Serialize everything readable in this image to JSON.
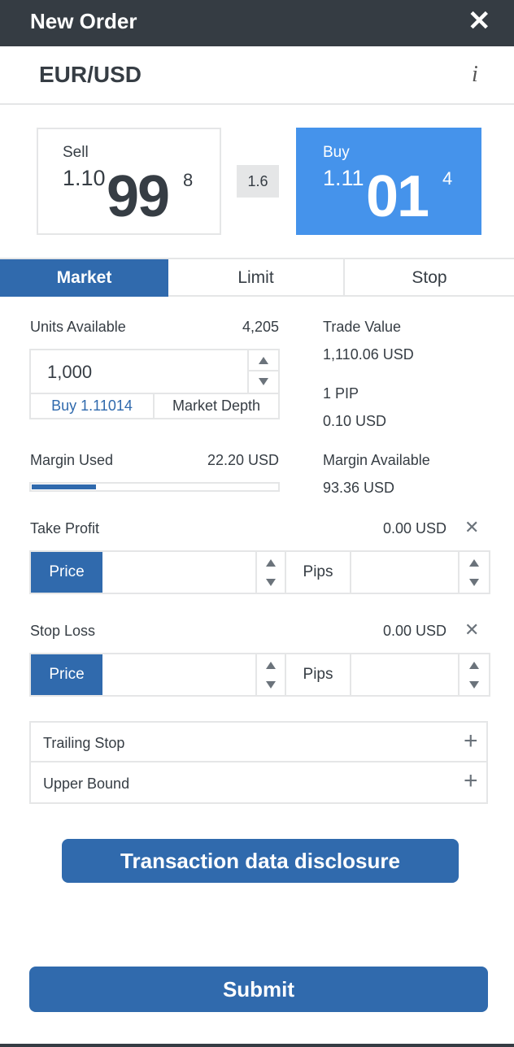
{
  "header": {
    "title": "New Order",
    "close_icon": "close-icon"
  },
  "instrument": {
    "symbol": "EUR/USD",
    "info_icon": "i"
  },
  "sell": {
    "label": "Sell",
    "price_prefix": "1.10",
    "price_big": "99",
    "price_sup": "8"
  },
  "buy": {
    "label": "Buy",
    "price_prefix": "1.11",
    "price_big": "01",
    "price_sup": "4"
  },
  "spread": "1.6",
  "tabs": [
    {
      "label": "Market",
      "active": true
    },
    {
      "label": "Limit",
      "active": false
    },
    {
      "label": "Stop",
      "active": false
    }
  ],
  "units": {
    "label": "Units Available",
    "value": "4,205",
    "input_value": "1,000",
    "buy_link": "Buy 1.11014",
    "depth_button": "Market Depth"
  },
  "trade_value": {
    "label": "Trade Value",
    "value": "1,110.06 USD"
  },
  "pip": {
    "label": "1 PIP",
    "value": "0.10 USD"
  },
  "margin_used": {
    "label": "Margin Used",
    "value": "22.20 USD",
    "bar_percent": 26
  },
  "margin_available": {
    "label": "Margin Available",
    "value": "93.36 USD"
  },
  "take_profit": {
    "label": "Take Profit",
    "value": "0.00 USD",
    "price_button": "Price",
    "pips_label": "Pips"
  },
  "stop_loss": {
    "label": "Stop Loss",
    "value": "0.00 USD",
    "price_button": "Price",
    "pips_label": "Pips"
  },
  "options": [
    {
      "label": "Trailing Stop"
    },
    {
      "label": "Upper Bound"
    }
  ],
  "disclosure_button": "Transaction data disclosure",
  "submit_button": "Submit",
  "colors": {
    "header": "#353c43",
    "accent": "#306aad",
    "buy": "#4593eb"
  }
}
